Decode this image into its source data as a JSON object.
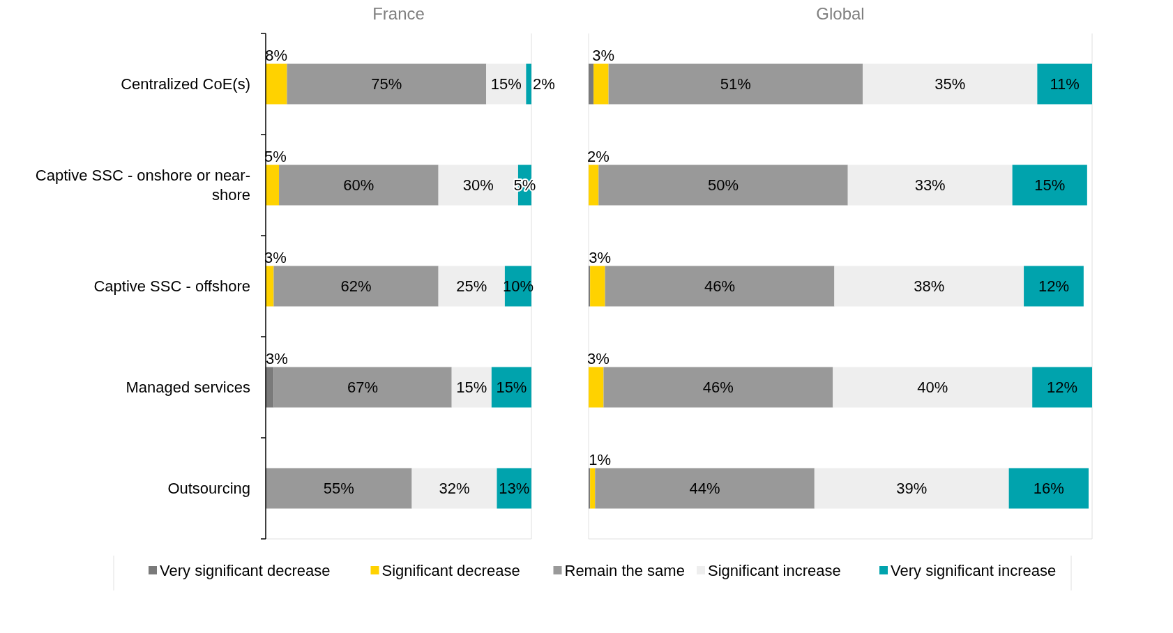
{
  "chart_data": [
    {
      "type": "bar",
      "title": "France",
      "orientation": "horizontal",
      "stacked": true,
      "legend": "bottom",
      "tick_labels": "y",
      "xlim": [
        0,
        100
      ],
      "categories": [
        "Centralized CoE(s)",
        "Captive SSC - onshore or near-shore",
        "Captive SSC - offshore",
        "Managed services",
        "Outsourcing"
      ],
      "series": [
        {
          "name": "Very significant decrease",
          "color": "#7a7a7a",
          "values": [
            0,
            0,
            0,
            3,
            0
          ],
          "value_labels": [
            null,
            null,
            null,
            "3%",
            null
          ]
        },
        {
          "name": "Significant decrease",
          "color": "#ffd200",
          "values": [
            8,
            5,
            3,
            0,
            0
          ],
          "value_labels": [
            "8%",
            "5%",
            "3%",
            null,
            null
          ]
        },
        {
          "name": "Remain the same",
          "color": "#999999",
          "values": [
            75,
            60,
            62,
            67,
            55
          ],
          "value_labels": [
            "75%",
            "60%",
            "62%",
            "67%",
            "55%"
          ]
        },
        {
          "name": "Significant increase",
          "color": "#eeeeee",
          "values": [
            15,
            30,
            25,
            15,
            32
          ],
          "value_labels": [
            "15%",
            "30%",
            "25%",
            "15%",
            "32%"
          ]
        },
        {
          "name": "Very significant increase",
          "color": "#00a3ad",
          "values": [
            2,
            5,
            10,
            15,
            13
          ],
          "value_labels": [
            "2%",
            "5%",
            "10%",
            "15%",
            "13%"
          ]
        }
      ]
    },
    {
      "type": "bar",
      "title": "Global",
      "orientation": "horizontal",
      "stacked": true,
      "tick_labels": false,
      "xlim": [
        0,
        101
      ],
      "categories": [
        null,
        null,
        null,
        null,
        null
      ],
      "series": [
        {
          "color": "#7a7a7a",
          "values": [
            1,
            0,
            0.3,
            0,
            0.3
          ],
          "value_labels": [
            null,
            null,
            null,
            null,
            null
          ]
        },
        {
          "color": "#ffd200",
          "values": [
            3,
            2,
            3,
            3,
            1
          ],
          "value_labels": [
            "3%",
            "2%",
            "3%",
            "3%",
            "1%"
          ]
        },
        {
          "color": "#999999",
          "values": [
            51,
            50,
            46,
            46,
            44
          ],
          "value_labels": [
            "51%",
            "50%",
            "46%",
            "46%",
            "44%"
          ]
        },
        {
          "color": "#eeeeee",
          "values": [
            35,
            33,
            38,
            40,
            39
          ],
          "value_labels": [
            "35%",
            "33%",
            "38%",
            "40%",
            "39%"
          ]
        },
        {
          "color": "#00a3ad",
          "values": [
            11,
            15,
            12,
            12,
            16
          ],
          "value_labels": [
            "11%",
            "15%",
            "12%",
            "12%",
            "16%"
          ]
        }
      ]
    }
  ]
}
